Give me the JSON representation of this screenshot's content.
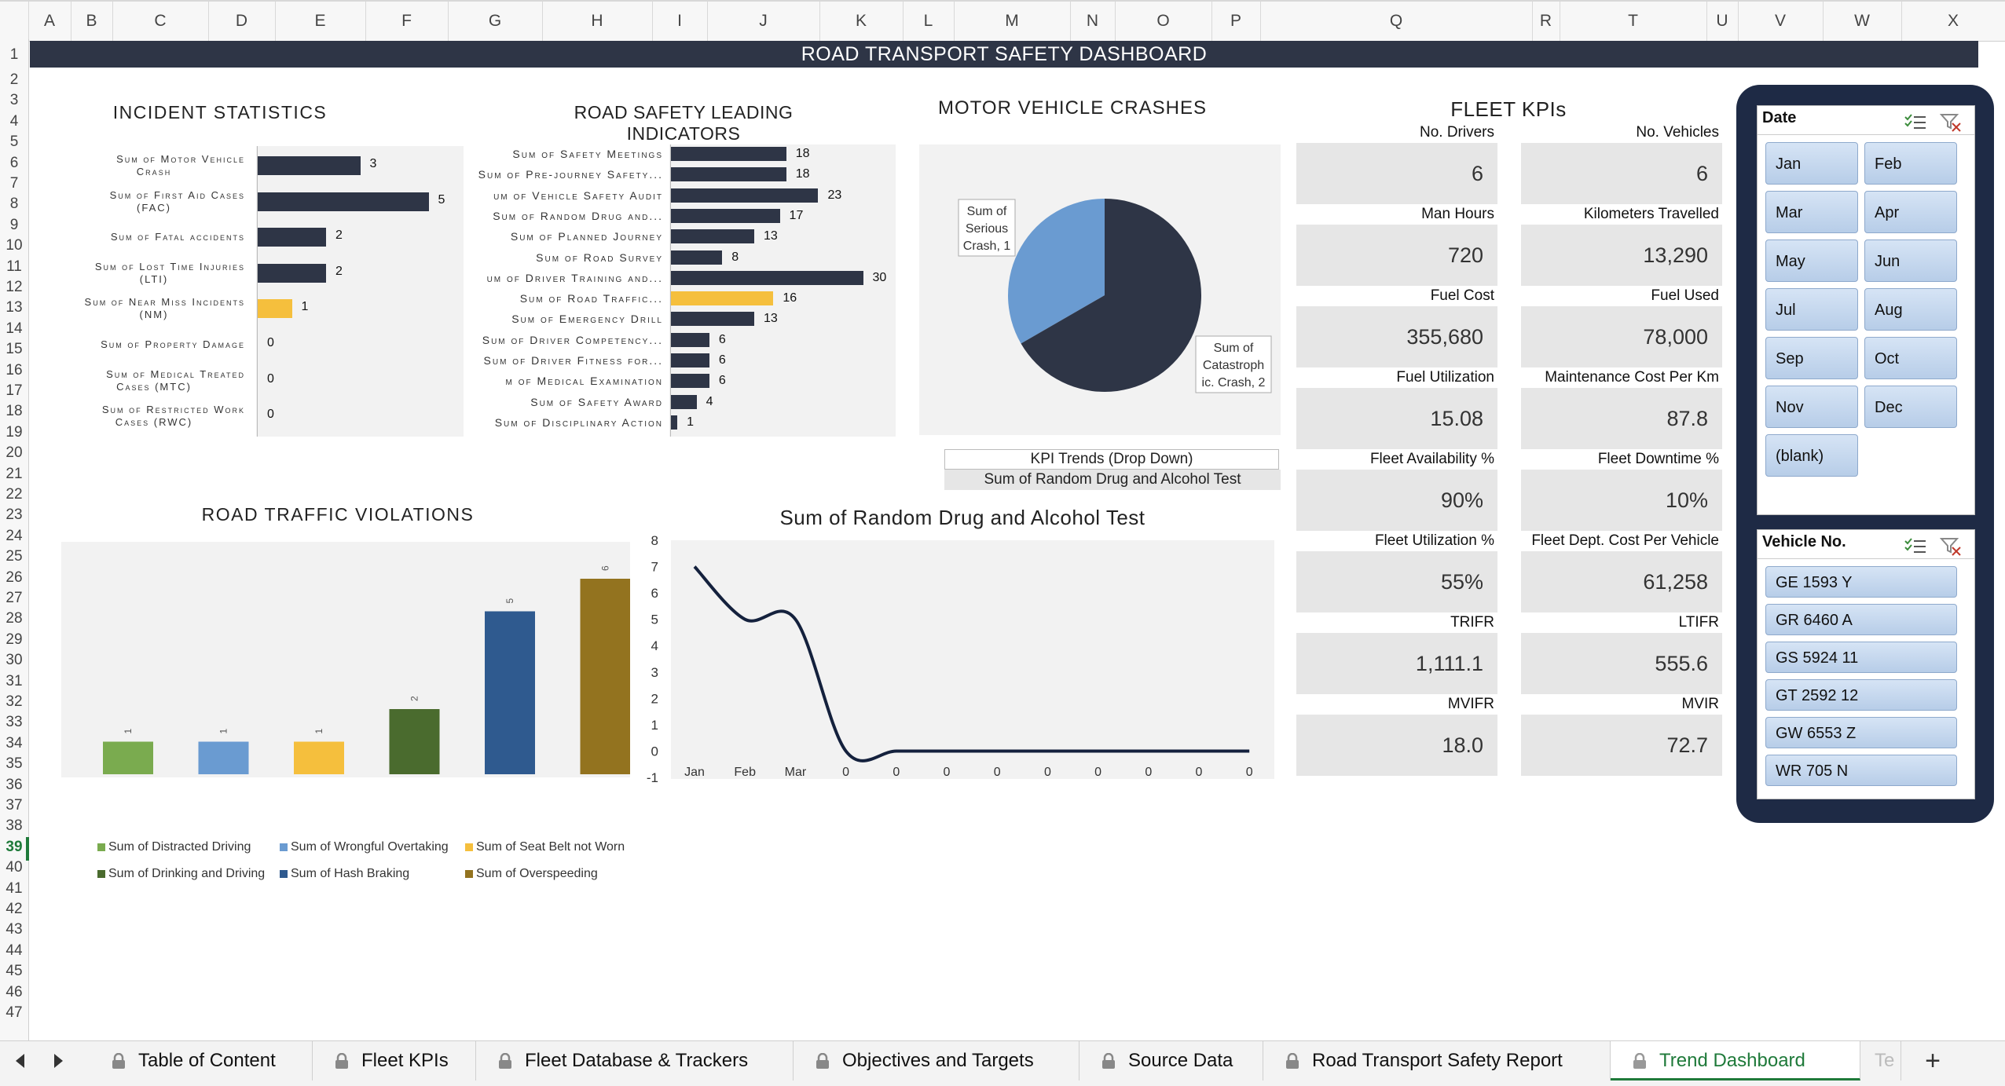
{
  "columns": [
    "A",
    "B",
    "C",
    "D",
    "E",
    "F",
    "G",
    "H",
    "I",
    "J",
    "K",
    "L",
    "M",
    "N",
    "O",
    "P",
    "Q",
    "R",
    "T",
    "U",
    "V",
    "W",
    "X"
  ],
  "rows": [
    "1",
    "2",
    "3",
    "4",
    "5",
    "6",
    "7",
    "8",
    "9",
    "10",
    "11",
    "12",
    "13",
    "14",
    "15",
    "16",
    "17",
    "18",
    "19",
    "20",
    "21",
    "22",
    "23",
    "24",
    "25",
    "26",
    "27",
    "28",
    "29",
    "30",
    "31",
    "32",
    "33",
    "34",
    "35",
    "36",
    "37",
    "38",
    "39",
    "40",
    "41",
    "42",
    "43",
    "44",
    "45",
    "46",
    "47"
  ],
  "dashboard_title": "ROAD TRANSPORT SAFETY DASHBOARD",
  "incident_statistics": {
    "title": "INCIDENT STATISTICS",
    "items": [
      {
        "label_l1": "Sum of Motor Vehicle",
        "label_l2": "Crash",
        "value": 3,
        "highlight": false
      },
      {
        "label_l1": "Sum of First Aid Cases",
        "label_l2": "(FAC)",
        "value": 5,
        "highlight": false
      },
      {
        "label_l1": "Sum of Fatal accidents",
        "label_l2": "",
        "value": 2,
        "highlight": false
      },
      {
        "label_l1": "Sum of Lost Time Injuries",
        "label_l2": "(LTI)",
        "value": 2,
        "highlight": false
      },
      {
        "label_l1": "Sum of Near Miss Incidents",
        "label_l2": "(NM)",
        "value": 1,
        "highlight": true
      },
      {
        "label_l1": "Sum of Property Damage",
        "label_l2": "",
        "value": 0,
        "highlight": false
      },
      {
        "label_l1": "Sum of Medical Treated",
        "label_l2": "Cases (MTC)",
        "value": 0,
        "highlight": false
      },
      {
        "label_l1": "Sum of Restricted Work",
        "label_l2": "Cases (RWC)",
        "value": 0,
        "highlight": false
      }
    ]
  },
  "leading_indicators": {
    "title": "ROAD SAFETY LEADING INDICATORS",
    "items": [
      {
        "label": "Sum of Safety Meetings",
        "value": 18,
        "highlight": false
      },
      {
        "label": "Sum of Pre-journey Safety...",
        "value": 18,
        "highlight": false
      },
      {
        "label": "um of Vehicle Safety Audit",
        "value": 23,
        "highlight": false
      },
      {
        "label": "Sum of Random Drug and...",
        "value": 17,
        "highlight": false
      },
      {
        "label": "Sum of Planned Journey",
        "value": 13,
        "highlight": false
      },
      {
        "label": "Sum of Road Survey",
        "value": 8,
        "highlight": false
      },
      {
        "label": "um of Driver Training and...",
        "value": 30,
        "highlight": false
      },
      {
        "label": "Sum of Road Traffic...",
        "value": 16,
        "highlight": true
      },
      {
        "label": "Sum of Emergency Drill",
        "value": 13,
        "highlight": false
      },
      {
        "label": "Sum of Driver Competency...",
        "value": 6,
        "highlight": false
      },
      {
        "label": "Sum of Driver Fitness for...",
        "value": 6,
        "highlight": false
      },
      {
        "label": "m of Medical Examination",
        "value": 6,
        "highlight": false
      },
      {
        "label": "Sum of Safety Award",
        "value": 4,
        "highlight": false
      },
      {
        "label": "Sum of Disciplinary Action",
        "value": 1,
        "highlight": false
      }
    ]
  },
  "motor_vehicle_crashes": {
    "title": "MOTOR VEHICLE CRASHES",
    "slices": [
      {
        "label_lines": [
          "Sum of",
          "Serious",
          "Crash, 1"
        ],
        "value": 1,
        "color": "#6a9bd1"
      },
      {
        "label_lines": [
          "Sum of",
          "Catastroph",
          "ic. Crash, 2"
        ],
        "value": 2,
        "color": "#2e3546"
      }
    ]
  },
  "kpi_dropdown": {
    "label": "KPI Trends (Drop Down)",
    "selected": "Sum of Random Drug and Alcohol Test"
  },
  "fleet_kpis": {
    "title": "FLEET KPIs",
    "items": [
      {
        "label": "No. Drivers",
        "value": "6"
      },
      {
        "label": "No. Vehicles",
        "value": "6"
      },
      {
        "label": "Man Hours",
        "value": "720"
      },
      {
        "label": "Kilometers Travelled",
        "value": "13,290"
      },
      {
        "label": "Fuel Cost",
        "value": "355,680"
      },
      {
        "label": "Fuel Used",
        "value": "78,000"
      },
      {
        "label": "Fuel Utilization",
        "value": "15.08"
      },
      {
        "label": "Maintenance Cost Per Km",
        "value": "87.8"
      },
      {
        "label": "Fleet Availability %",
        "value": "90%"
      },
      {
        "label": "Fleet Downtime %",
        "value": "10%"
      },
      {
        "label": "Fleet Utilization %",
        "value": "55%"
      },
      {
        "label": "Fleet Dept. Cost Per Vehicle",
        "value": "61,258"
      },
      {
        "label": "TRIFR",
        "value": "1,111.1"
      },
      {
        "label": "LTIFR",
        "value": "555.6"
      },
      {
        "label": "MVIFR",
        "value": "18.0"
      },
      {
        "label": "MVIR",
        "value": "72.7"
      }
    ]
  },
  "road_traffic_violations": {
    "title": "ROAD TRAFFIC VIOLATIONS",
    "series": [
      {
        "name": "Sum of  Distracted Driving",
        "value": 1,
        "color": "#7aab4f"
      },
      {
        "name": "Sum of  Wrongful Overtaking",
        "value": 1,
        "color": "#6a9bd1"
      },
      {
        "name": "Sum of  Seat Belt not Worn",
        "value": 1,
        "color": "#f5bf3d"
      },
      {
        "name": "Sum of  Drinking and Driving",
        "value": 2,
        "color": "#4a6b2e"
      },
      {
        "name": "Sum of  Hash Braking",
        "value": 5,
        "color": "#2f5a8f"
      },
      {
        "name": "Sum of  Overspeeding",
        "value": 6,
        "color": "#93731f"
      }
    ]
  },
  "chart_data": {
    "type": "line",
    "title": "Sum of  Random Drug and Alcohol Test",
    "categories": [
      "Jan",
      "Feb",
      "Mar",
      "0",
      "0",
      "0",
      "0",
      "0",
      "0",
      "0",
      "0",
      "0"
    ],
    "series": [
      {
        "values": [
          7,
          5,
          5,
          0,
          0,
          0,
          0,
          0,
          0,
          0,
          0,
          0
        ]
      }
    ],
    "y_ticks": [
      "8",
      "7",
      "6",
      "5",
      "4",
      "3",
      "2",
      "1",
      "0",
      "-1"
    ],
    "ylim": [
      -1,
      8
    ],
    "line_color": "#14213d"
  },
  "slicer_date": {
    "title": "Date",
    "items": [
      "Jan",
      "Feb",
      "Mar",
      "Apr",
      "May",
      "Jun",
      "Jul",
      "Aug",
      "Sep",
      "Oct",
      "Nov",
      "Dec",
      "(blank)"
    ]
  },
  "slicer_vehicle": {
    "title": "Vehicle No.",
    "items": [
      "GE 1593 Y",
      "GR 6460 A",
      "GS 5924 11",
      "GT 2592  12",
      "GW 6553 Z",
      "WR 705 N"
    ]
  },
  "sheet_tabs": [
    {
      "label": "Table of Content",
      "active": false
    },
    {
      "label": "Fleet KPIs",
      "active": false
    },
    {
      "label": "Fleet Database & Trackers",
      "active": false
    },
    {
      "label": "Objectives and Targets",
      "active": false
    },
    {
      "label": "Source Data",
      "active": false
    },
    {
      "label": "Road Transport Safety Report",
      "active": false
    },
    {
      "label": "Trend Dashboard",
      "active": true
    },
    {
      "label": "Te",
      "active": false
    }
  ],
  "add_sheet": "+"
}
